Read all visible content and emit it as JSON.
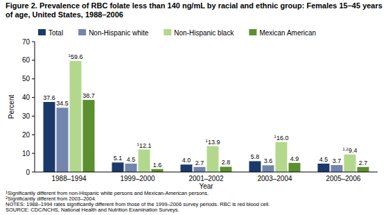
{
  "chart_data": {
    "type": "bar",
    "title": "Figure 2. Prevalence of RBC folate less than 140 ng/mL by racial and ethnic group: Females 15–45 years of age, United States, 1988–2006",
    "x_label": "Year",
    "y_label": "Percent",
    "categories": [
      "1988–1994",
      "1999–2000",
      "2001–2002",
      "2003–2004",
      "2005–2006"
    ],
    "series": [
      {
        "name": "Total",
        "color": "#1b3a6b",
        "values": [
          37.6,
          5.1,
          4.0,
          5.8,
          4.5
        ],
        "value_labels": [
          "37.6",
          "5.1",
          "4.0",
          "5.8",
          "4.5"
        ]
      },
      {
        "name": "Non-Hispanic white",
        "color": "#7384ad",
        "values": [
          34.5,
          4.5,
          2.7,
          3.6,
          3.7
        ],
        "value_labels": [
          "34.5",
          "4.5",
          "2.7",
          "3.6",
          "3.7"
        ]
      },
      {
        "name": "Non-Hispanic black",
        "color": "#b3d88d",
        "values": [
          59.6,
          12.1,
          13.9,
          16.0,
          9.4
        ],
        "value_labels": [
          "59.6",
          "12.1",
          "13.9",
          "16.0",
          "9.4"
        ],
        "value_notes": [
          "1",
          "1",
          "1",
          "1",
          "1,2"
        ]
      },
      {
        "name": "Mexican American",
        "color": "#5c8f2f",
        "values": [
          38.7,
          1.6,
          2.8,
          4.9,
          2.7
        ],
        "value_labels": [
          "38.7",
          "1.6",
          "2.8",
          "4.9",
          "2.7"
        ]
      }
    ],
    "ylim": [
      0,
      70
    ],
    "yticks": [
      0,
      10,
      20,
      30,
      40,
      50,
      60,
      70
    ],
    "grid": false,
    "legend": "top",
    "data_labels": true,
    "footnotes": [
      {
        "mark": "1",
        "text": "Significantly different from non-Hispanic white persons and Mexican-American persons."
      },
      {
        "mark": "2",
        "text": "Significantly different from 2003–2004."
      }
    ],
    "notes": [
      "NOTES: 1988–1994 rates significantly different from those of the 1999–2006 survey periods. RBC is red blood cell.",
      "SOURCE: CDC/NCHS, National Health and Nutrition Examination Surveys."
    ]
  }
}
